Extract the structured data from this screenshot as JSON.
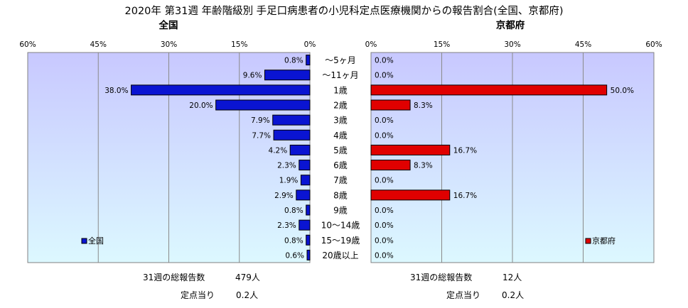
{
  "title": "2020年 第31週 年齢階級別 手足口病患者の小児科定点医療機関からの報告割合(全国、京都府)",
  "chart_data": [
    {
      "type": "bar",
      "orientation": "horizontal",
      "direction": "right-to-left",
      "title": "全国",
      "xlim": [
        0,
        60
      ],
      "x_ticks": [
        "0%",
        "15%",
        "30%",
        "45%",
        "60%"
      ],
      "categories": [
        "～5ヶ月",
        "～11ヶ月",
        "1歳",
        "2歳",
        "3歳",
        "4歳",
        "5歳",
        "6歳",
        "7歳",
        "8歳",
        "9歳",
        "10～14歳",
        "15～19歳",
        "20歳以上"
      ],
      "series": [
        {
          "name": "全国",
          "color": "#0a14d2",
          "values": [
            0.8,
            9.6,
            38.0,
            20.0,
            7.9,
            7.7,
            4.2,
            2.3,
            1.9,
            2.9,
            0.8,
            2.3,
            0.8,
            0.6
          ],
          "labels": [
            "0.8%",
            "9.6%",
            "38.0%",
            "20.0%",
            "7.9%",
            "7.7%",
            "4.2%",
            "2.3%",
            "1.9%",
            "2.9%",
            "0.8%",
            "2.3%",
            "0.8%",
            "0.6%"
          ]
        }
      ],
      "legend": "bottom-left",
      "grid": true
    },
    {
      "type": "bar",
      "orientation": "horizontal",
      "direction": "left-to-right",
      "title": "京都府",
      "xlim": [
        0,
        60
      ],
      "x_ticks": [
        "0%",
        "15%",
        "30%",
        "45%",
        "60%"
      ],
      "categories": [
        "～5ヶ月",
        "～11ヶ月",
        "1歳",
        "2歳",
        "3歳",
        "4歳",
        "5歳",
        "6歳",
        "7歳",
        "8歳",
        "9歳",
        "10～14歳",
        "15～19歳",
        "20歳以上"
      ],
      "series": [
        {
          "name": "京都府",
          "color": "#e00000",
          "values": [
            0.0,
            0.0,
            50.0,
            8.3,
            0.0,
            0.0,
            16.7,
            8.3,
            0.0,
            16.7,
            0.0,
            0.0,
            0.0,
            0.0
          ],
          "labels": [
            "0.0%",
            "0.0%",
            "50.0%",
            "8.3%",
            "0.0%",
            "0.0%",
            "16.7%",
            "8.3%",
            "0.0%",
            "16.7%",
            "0.0%",
            "0.0%",
            "0.0%",
            "0.0%"
          ]
        }
      ],
      "legend": "bottom-right",
      "grid": true
    }
  ],
  "footer": {
    "national": {
      "total_label": "31週の総報告数",
      "total_value": "479人",
      "per_label": "定点当り",
      "per_value": "0.2人"
    },
    "kyoto": {
      "total_label": "31週の総報告数",
      "total_value": "12人",
      "per_label": "定点当り",
      "per_value": "0.2人"
    }
  },
  "colors": {
    "plot_top": "#c8c8ff",
    "plot_bottom": "#dcf8ff",
    "national_bar": "#0a14d2",
    "kyoto_bar": "#e00000"
  }
}
